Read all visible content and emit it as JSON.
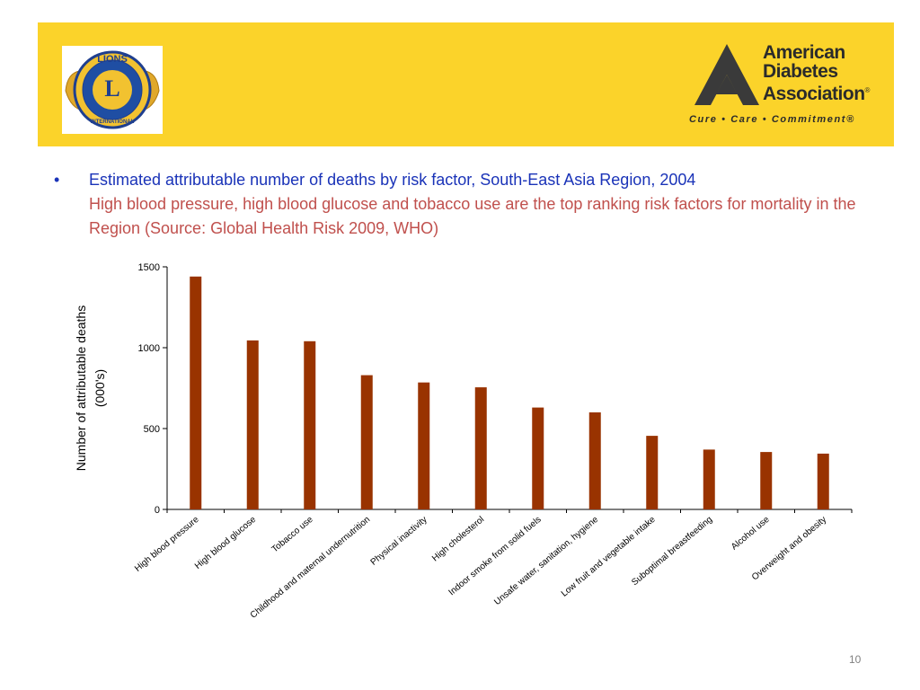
{
  "slide": {
    "bullet": "•",
    "headline": "Estimated attributable number of deaths by risk factor, South-East Asia Region, 2004",
    "subtext": "High blood pressure, high blood glucose and tobacco use are the top ranking risk factors for mortality in the Region (Source: Global Health Risk 2009, WHO)",
    "page_number": "10"
  },
  "logos": {
    "lions": {
      "top_text": "LIONS",
      "center_letter": "L",
      "bottom_text": "INTERNATIONAL"
    },
    "ada": {
      "line1": "American",
      "line2": "Diabetes",
      "line3": "Association",
      "registered": "®",
      "tagline": "Cure • Care • Commitment®"
    }
  },
  "colors": {
    "header_bg": "#fbd32a",
    "headline": "#1a33b8",
    "subtext": "#c0504d",
    "bar": "#993300"
  },
  "chart_data": {
    "type": "bar",
    "title": "",
    "xlabel": "",
    "ylabel": "Number of attributable deaths (000's)",
    "ylabel_lines": [
      "Number of attributable deaths",
      "(000's)"
    ],
    "ylim": [
      0,
      1500
    ],
    "yticks": [
      0,
      500,
      1000,
      1500
    ],
    "grid": false,
    "categories": [
      "High blood pressure",
      "High blood glucose",
      "Tobacco use",
      "Childhood and maternal undernutrition",
      "Physical inactivity",
      "High cholesterol",
      "Indoor smoke from solid fuels",
      "Unsafe water, sanitation, hygiene",
      "Low fruit and vegetable intake",
      "Suboptimal breastfeeding",
      "Alcohol use",
      "Overweight and obesity"
    ],
    "values": [
      1440,
      1045,
      1040,
      830,
      785,
      755,
      630,
      600,
      455,
      370,
      355,
      345
    ]
  }
}
